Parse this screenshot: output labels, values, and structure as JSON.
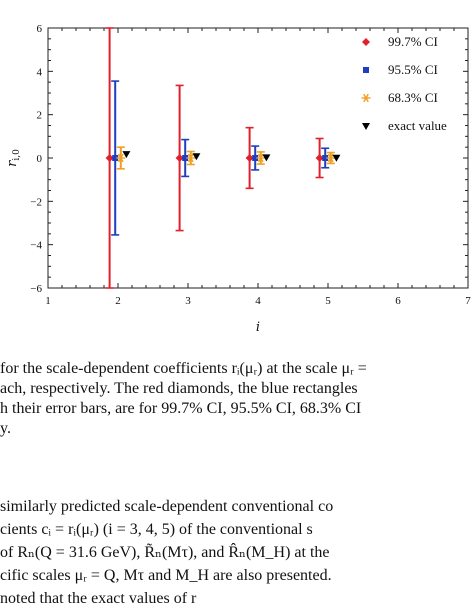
{
  "chart_data": {
    "type": "scatter",
    "title": "",
    "xlabel": "i",
    "ylabel": "r_{i,0}",
    "xlim": [
      1,
      7
    ],
    "ylim": [
      -6,
      6
    ],
    "x_ticks": [
      "1",
      "2",
      "3",
      "4",
      "5",
      "6",
      "7"
    ],
    "y_ticks": [
      "6",
      "4",
      "2",
      "0",
      "−2",
      "−4",
      "−6"
    ],
    "legend_position": "top-right",
    "grid": false,
    "series": [
      {
        "name": "99.7% CI",
        "color": "#e0202b",
        "marker": "diamond",
        "points": [
          {
            "x": 1.88,
            "y": 0,
            "low": -6.0,
            "high": 6.0
          },
          {
            "x": 2.88,
            "y": 0,
            "low": -3.35,
            "high": 3.35
          },
          {
            "x": 3.88,
            "y": 0,
            "low": -1.4,
            "high": 1.4
          },
          {
            "x": 4.88,
            "y": 0,
            "low": -0.9,
            "high": 0.9
          }
        ]
      },
      {
        "name": "95.5% CI",
        "color": "#1f3fbf",
        "marker": "square",
        "points": [
          {
            "x": 1.96,
            "y": 0,
            "low": -3.55,
            "high": 3.55
          },
          {
            "x": 2.96,
            "y": 0,
            "low": -0.85,
            "high": 0.85
          },
          {
            "x": 3.96,
            "y": 0,
            "low": -0.55,
            "high": 0.55
          },
          {
            "x": 4.96,
            "y": 0,
            "low": -0.45,
            "high": 0.45
          }
        ]
      },
      {
        "name": "68.3% CI",
        "color": "#f0a020",
        "marker": "asterisk",
        "points": [
          {
            "x": 2.04,
            "y": 0,
            "low": -0.5,
            "high": 0.5
          },
          {
            "x": 3.04,
            "y": 0,
            "low": -0.3,
            "high": 0.3
          },
          {
            "x": 4.04,
            "y": 0,
            "low": -0.28,
            "high": 0.28
          },
          {
            "x": 5.04,
            "y": 0,
            "low": -0.25,
            "high": 0.25
          }
        ]
      },
      {
        "name": "exact value",
        "color": "#000000",
        "marker": "triangle-down",
        "points": [
          {
            "x": 2.12,
            "y": 0.18
          },
          {
            "x": 3.12,
            "y": 0.08
          },
          {
            "x": 4.12,
            "y": 0.03
          },
          {
            "x": 5.12,
            "y": 0.01
          }
        ]
      }
    ]
  },
  "caption": {
    "lines": [
      "for the scale-dependent coefficients rᵢ(μᵣ) at the scale μᵣ =",
      "ach, respectively. The red diamonds, the blue rectangles",
      "h their error bars, are for 99.7% CI, 95.5% CI, 68.3% CI",
      "y."
    ]
  },
  "body": {
    "lines": [
      " similarly predicted scale-dependent conventional co",
      " cients cᵢ = rᵢ(μᵣ) (i = 3, 4, 5) of the conventional s",
      " of Rₙ(Q = 31.6 GeV), R̃ₙ(Mτ), and R̂ₙ(M_H) at the",
      " cific scales μᵣ = Q, Mτ and M_H are also presented.",
      " noted that the exact values of r"
    ]
  }
}
